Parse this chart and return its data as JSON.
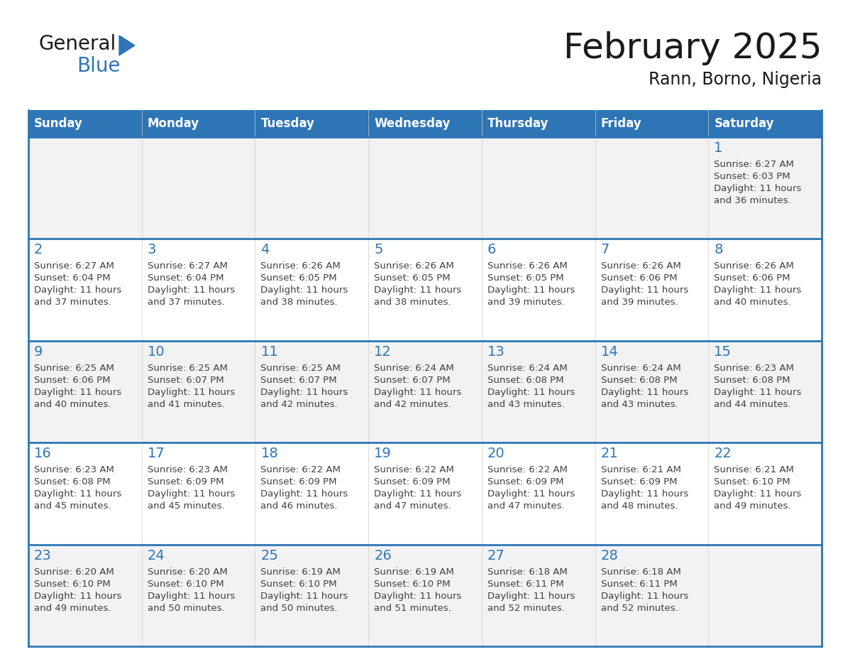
{
  "title": "February 2025",
  "subtitle": "Rann, Borno, Nigeria",
  "header_color": "#2E75B6",
  "header_text_color": "#FFFFFF",
  "cell_bg_white": "#FFFFFF",
  "cell_bg_gray": "#EEEEEE",
  "cell_border_color": "#2E75B6",
  "day_number_color": "#2E75B6",
  "cell_text_color": "#404040",
  "title_color": "#1a1a1a",
  "days_of_week": [
    "Sunday",
    "Monday",
    "Tuesday",
    "Wednesday",
    "Thursday",
    "Friday",
    "Saturday"
  ],
  "calendar_data": [
    [
      null,
      null,
      null,
      null,
      null,
      null,
      {
        "day": "1",
        "sunrise": "6:27 AM",
        "sunset": "6:03 PM",
        "daylight_h": "11 hours",
        "daylight_m": "and 36 minutes."
      }
    ],
    [
      {
        "day": "2",
        "sunrise": "6:27 AM",
        "sunset": "6:04 PM",
        "daylight_h": "11 hours",
        "daylight_m": "and 37 minutes."
      },
      {
        "day": "3",
        "sunrise": "6:27 AM",
        "sunset": "6:04 PM",
        "daylight_h": "11 hours",
        "daylight_m": "and 37 minutes."
      },
      {
        "day": "4",
        "sunrise": "6:26 AM",
        "sunset": "6:05 PM",
        "daylight_h": "11 hours",
        "daylight_m": "and 38 minutes."
      },
      {
        "day": "5",
        "sunrise": "6:26 AM",
        "sunset": "6:05 PM",
        "daylight_h": "11 hours",
        "daylight_m": "and 38 minutes."
      },
      {
        "day": "6",
        "sunrise": "6:26 AM",
        "sunset": "6:05 PM",
        "daylight_h": "11 hours",
        "daylight_m": "and 39 minutes."
      },
      {
        "day": "7",
        "sunrise": "6:26 AM",
        "sunset": "6:06 PM",
        "daylight_h": "11 hours",
        "daylight_m": "and 39 minutes."
      },
      {
        "day": "8",
        "sunrise": "6:26 AM",
        "sunset": "6:06 PM",
        "daylight_h": "11 hours",
        "daylight_m": "and 40 minutes."
      }
    ],
    [
      {
        "day": "9",
        "sunrise": "6:25 AM",
        "sunset": "6:06 PM",
        "daylight_h": "11 hours",
        "daylight_m": "and 40 minutes."
      },
      {
        "day": "10",
        "sunrise": "6:25 AM",
        "sunset": "6:07 PM",
        "daylight_h": "11 hours",
        "daylight_m": "and 41 minutes."
      },
      {
        "day": "11",
        "sunrise": "6:25 AM",
        "sunset": "6:07 PM",
        "daylight_h": "11 hours",
        "daylight_m": "and 42 minutes."
      },
      {
        "day": "12",
        "sunrise": "6:24 AM",
        "sunset": "6:07 PM",
        "daylight_h": "11 hours",
        "daylight_m": "and 42 minutes."
      },
      {
        "day": "13",
        "sunrise": "6:24 AM",
        "sunset": "6:08 PM",
        "daylight_h": "11 hours",
        "daylight_m": "and 43 minutes."
      },
      {
        "day": "14",
        "sunrise": "6:24 AM",
        "sunset": "6:08 PM",
        "daylight_h": "11 hours",
        "daylight_m": "and 43 minutes."
      },
      {
        "day": "15",
        "sunrise": "6:23 AM",
        "sunset": "6:08 PM",
        "daylight_h": "11 hours",
        "daylight_m": "and 44 minutes."
      }
    ],
    [
      {
        "day": "16",
        "sunrise": "6:23 AM",
        "sunset": "6:08 PM",
        "daylight_h": "11 hours",
        "daylight_m": "and 45 minutes."
      },
      {
        "day": "17",
        "sunrise": "6:23 AM",
        "sunset": "6:09 PM",
        "daylight_h": "11 hours",
        "daylight_m": "and 45 minutes."
      },
      {
        "day": "18",
        "sunrise": "6:22 AM",
        "sunset": "6:09 PM",
        "daylight_h": "11 hours",
        "daylight_m": "and 46 minutes."
      },
      {
        "day": "19",
        "sunrise": "6:22 AM",
        "sunset": "6:09 PM",
        "daylight_h": "11 hours",
        "daylight_m": "and 47 minutes."
      },
      {
        "day": "20",
        "sunrise": "6:22 AM",
        "sunset": "6:09 PM",
        "daylight_h": "11 hours",
        "daylight_m": "and 47 minutes."
      },
      {
        "day": "21",
        "sunrise": "6:21 AM",
        "sunset": "6:09 PM",
        "daylight_h": "11 hours",
        "daylight_m": "and 48 minutes."
      },
      {
        "day": "22",
        "sunrise": "6:21 AM",
        "sunset": "6:10 PM",
        "daylight_h": "11 hours",
        "daylight_m": "and 49 minutes."
      }
    ],
    [
      {
        "day": "23",
        "sunrise": "6:20 AM",
        "sunset": "6:10 PM",
        "daylight_h": "11 hours",
        "daylight_m": "and 49 minutes."
      },
      {
        "day": "24",
        "sunrise": "6:20 AM",
        "sunset": "6:10 PM",
        "daylight_h": "11 hours",
        "daylight_m": "and 50 minutes."
      },
      {
        "day": "25",
        "sunrise": "6:19 AM",
        "sunset": "6:10 PM",
        "daylight_h": "11 hours",
        "daylight_m": "and 50 minutes."
      },
      {
        "day": "26",
        "sunrise": "6:19 AM",
        "sunset": "6:10 PM",
        "daylight_h": "11 hours",
        "daylight_m": "and 51 minutes."
      },
      {
        "day": "27",
        "sunrise": "6:18 AM",
        "sunset": "6:11 PM",
        "daylight_h": "11 hours",
        "daylight_m": "and 52 minutes."
      },
      {
        "day": "28",
        "sunrise": "6:18 AM",
        "sunset": "6:11 PM",
        "daylight_h": "11 hours",
        "daylight_m": "and 52 minutes."
      },
      null
    ]
  ]
}
